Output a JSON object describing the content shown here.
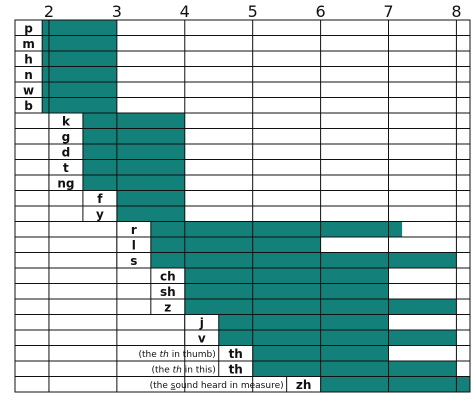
{
  "chart_data": {
    "type": "bar",
    "orientation": "horizontal",
    "title": "",
    "xlabel": "",
    "ylabel": "",
    "x_ticks": [
      "2",
      "3",
      "4",
      "5",
      "6",
      "7",
      "8"
    ],
    "xlim": [
      1.5,
      8.2
    ],
    "grid": true,
    "bar_color": "#13807A",
    "categories": [
      {
        "label": "p",
        "label_start": 1.5,
        "start": 1.9,
        "end": 3.0
      },
      {
        "label": "m",
        "label_start": 1.5,
        "start": 1.9,
        "end": 3.0
      },
      {
        "label": "h",
        "label_start": 1.5,
        "start": 1.9,
        "end": 3.0
      },
      {
        "label": "n",
        "label_start": 1.5,
        "start": 1.9,
        "end": 3.0
      },
      {
        "label": "w",
        "label_start": 1.5,
        "start": 1.9,
        "end": 3.0
      },
      {
        "label": "b",
        "label_start": 1.5,
        "start": 1.9,
        "end": 3.0
      },
      {
        "label": "k",
        "label_start": 2.0,
        "start": 2.5,
        "end": 4.0
      },
      {
        "label": "g",
        "label_start": 2.0,
        "start": 2.5,
        "end": 4.0
      },
      {
        "label": "d",
        "label_start": 2.0,
        "start": 2.5,
        "end": 4.0
      },
      {
        "label": "t",
        "label_start": 2.0,
        "start": 2.5,
        "end": 4.0
      },
      {
        "label": "ng",
        "label_start": 2.0,
        "start": 2.5,
        "end": 4.0
      },
      {
        "label": "f",
        "label_start": 2.5,
        "start": 3.0,
        "end": 4.0
      },
      {
        "label": "y",
        "label_start": 2.5,
        "start": 3.0,
        "end": 4.0
      },
      {
        "label": "r",
        "label_start": 3.0,
        "start": 3.5,
        "end": 7.2
      },
      {
        "label": "l",
        "label_start": 3.0,
        "start": 3.5,
        "end": 6.0
      },
      {
        "label": "s",
        "label_start": 3.0,
        "start": 3.5,
        "end": 8.0
      },
      {
        "label": "ch",
        "label_start": 3.5,
        "start": 4.0,
        "end": 7.0
      },
      {
        "label": "sh",
        "label_start": 3.5,
        "start": 4.0,
        "end": 7.0
      },
      {
        "label": "z",
        "label_start": 3.5,
        "start": 4.0,
        "end": 8.0
      },
      {
        "label": "j",
        "label_start": 4.0,
        "start": 4.5,
        "end": 7.0
      },
      {
        "label": "v",
        "label_start": 4.0,
        "start": 4.5,
        "end": 8.0
      },
      {
        "label": "th",
        "note": "(the th in thumb)",
        "note_em": "th",
        "label_start": 4.5,
        "start": 5.0,
        "end": 7.0
      },
      {
        "label": "th",
        "note": "(the th in this)",
        "note_em": "th",
        "label_start": 4.5,
        "start": 5.0,
        "end": 8.0
      },
      {
        "label": "zh",
        "note": "(the sound heard in measure)",
        "note_ul": "s",
        "label_start": 5.5,
        "start": 6.0,
        "end": 8.2
      }
    ]
  }
}
